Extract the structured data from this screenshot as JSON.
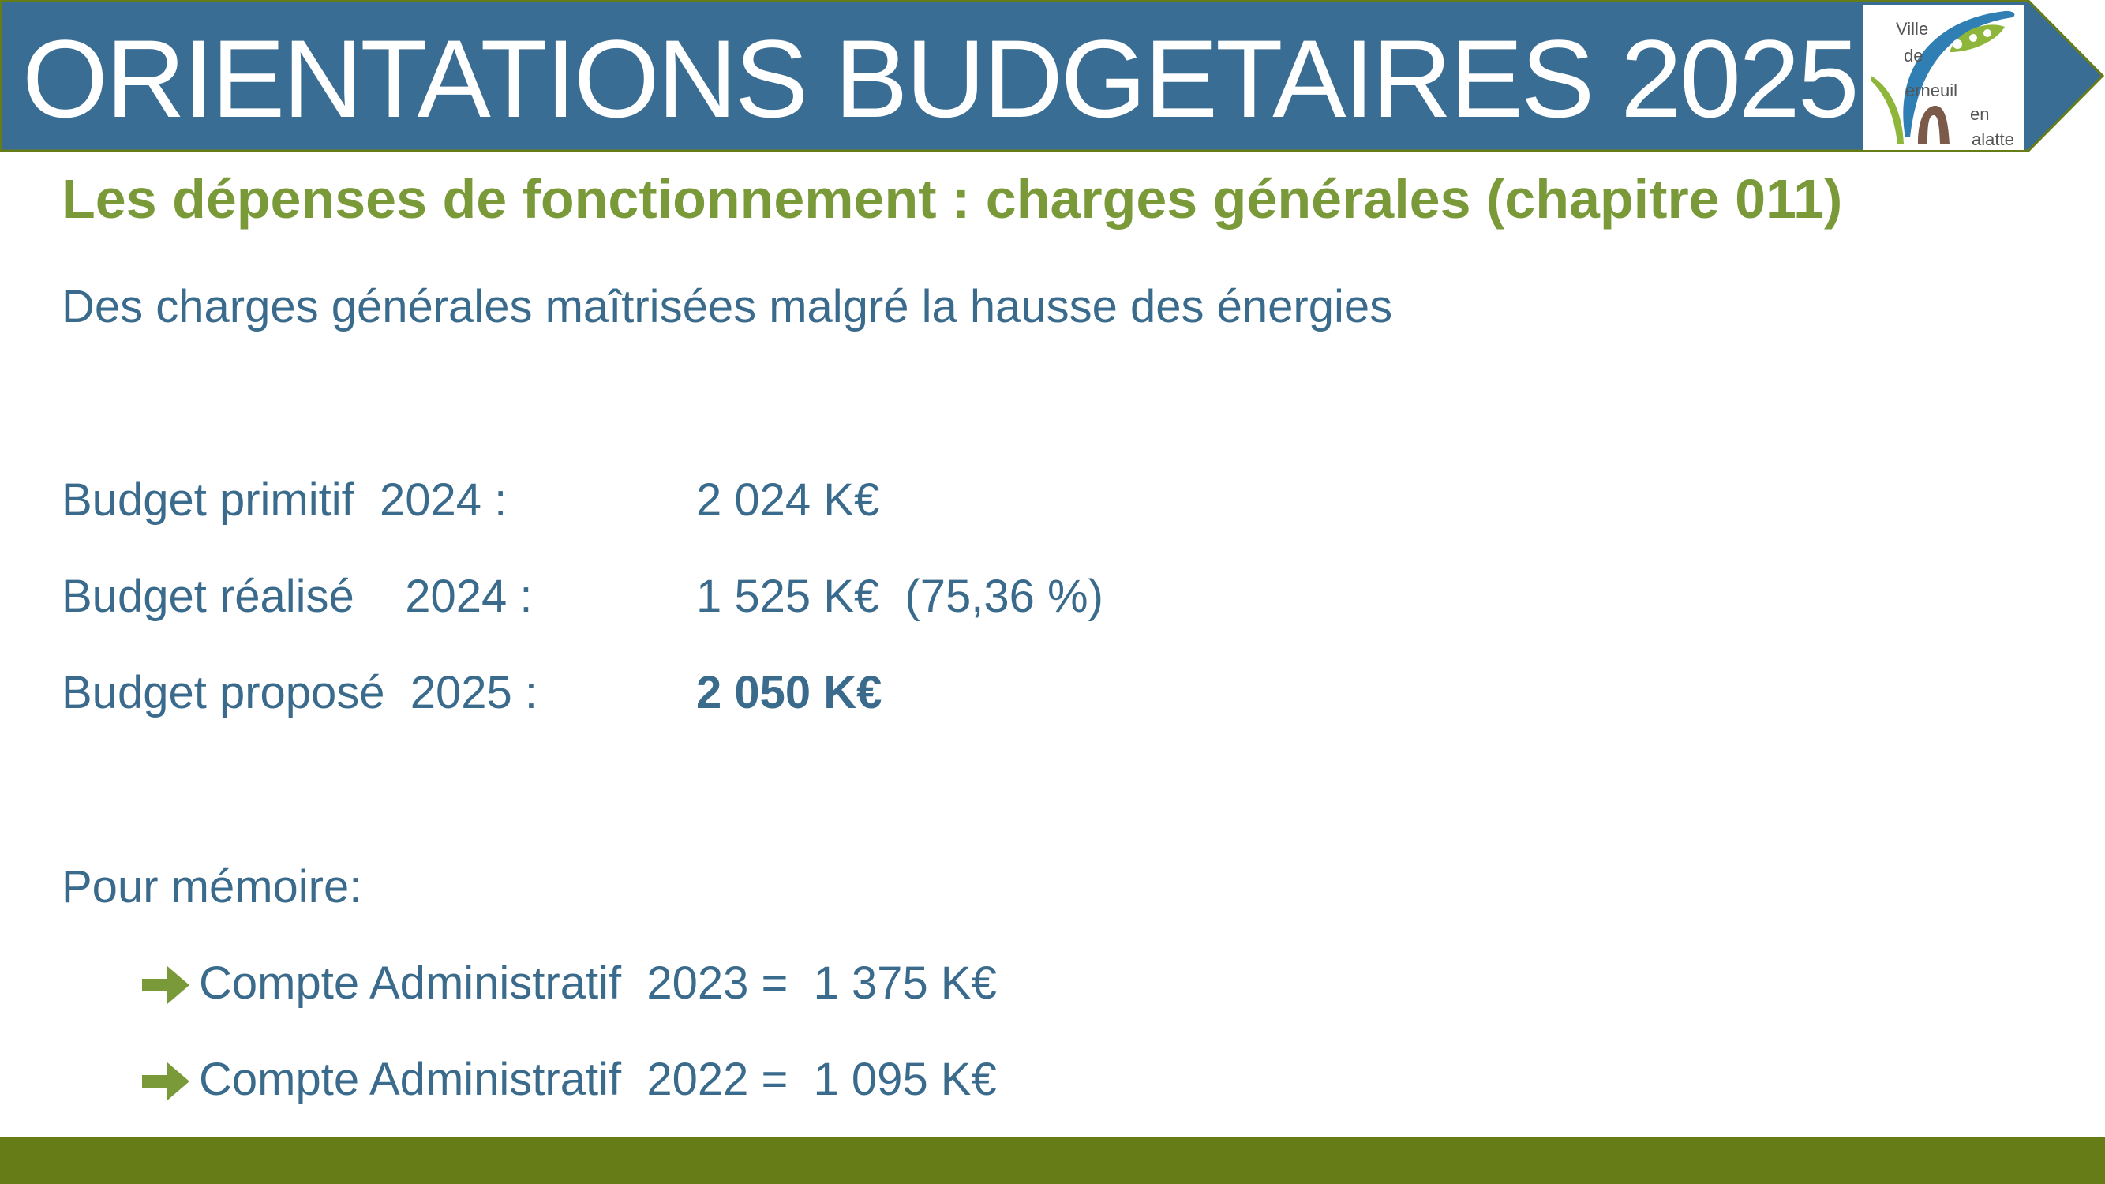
{
  "header": {
    "title": "ORIENTATIONS BUDGETAIRES 2025",
    "banner_color": "#3a6d93",
    "logo": {
      "words": [
        "Ville",
        "de",
        "erneuil",
        "en",
        "alatte"
      ]
    }
  },
  "subtitle": "Les dépenses de fonctionnement : charges générales (chapitre 011)",
  "intro": "Des charges générales maîtrisées malgré la hausse des énergies",
  "budget_rows": [
    {
      "label": "Budget primitif  2024 :",
      "value": "2 024 K€"
    },
    {
      "label": "Budget réalisé    2024 :",
      "value": "1 525 K€  (75,36 %)"
    },
    {
      "label": "Budget proposé  2025 :",
      "value": "2 050 K€"
    }
  ],
  "memo": {
    "title": "Pour mémoire:",
    "items": [
      {
        "text": "Compte Administratif  2023 =  1 375 K€",
        "icon": "arrow-right-icon"
      },
      {
        "text": "Compte Administratif  2022 =  1 095 K€",
        "icon": "arrow-right-icon"
      }
    ]
  },
  "colors": {
    "title_blue": "#3a6d93",
    "text_blue": "#3a6b8c",
    "accent_green": "#7a9a3a",
    "footer_green": "#667d17"
  }
}
